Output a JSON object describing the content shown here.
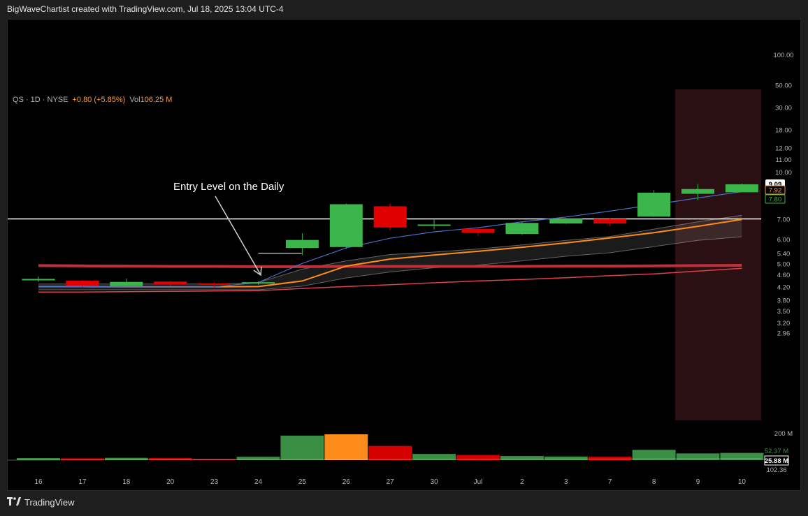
{
  "header": {
    "caption": "BigWaveChartist created with TradingView.com, Jul 18, 2025 13:04 UTC-4"
  },
  "legend": {
    "symbol": "QS · 1D · NYSE",
    "change": "+0.80 (+5.85%)",
    "volume_label": "Vol",
    "volume_value": "106.25 M"
  },
  "annotation": {
    "text": "Entry Level on the Daily"
  },
  "footer": {
    "brand": "TradingView",
    "logo_icon": "tradingview-logo-icon"
  },
  "colors": {
    "up": "#3cb54a",
    "down": "#e00000",
    "ema_orange": "#ff8c1a",
    "ema_blue": "#4a6fc4",
    "ma_red": "#e0404a",
    "ma_red_thick": "#c0303a",
    "horizontal_line": "#ffffff",
    "highlight_zone": "#2a1012",
    "background": "#000000"
  },
  "chart_data": {
    "type": "candlestick",
    "symbol": "QS",
    "timeframe": "1D",
    "exchange": "NYSE",
    "x_labels": [
      "16",
      "17",
      "18",
      "20",
      "23",
      "24",
      "25",
      "26",
      "27",
      "30",
      "Jul",
      "2",
      "3",
      "7",
      "8",
      "9",
      "10"
    ],
    "y_scale": "log",
    "y_tick_labels": [
      "100.00",
      "50.00",
      "30.00",
      "18.00",
      "12.00",
      "11.00",
      "10.00",
      "9.09",
      "7.92",
      "7.80",
      "7.00",
      "6.00",
      "5.40",
      "5.00",
      "4.60",
      "4.20",
      "3.80",
      "3.50",
      "3.20",
      "2.96"
    ],
    "y_ticks": [
      100,
      50,
      30,
      18,
      12,
      11,
      10,
      7,
      6,
      5.4,
      5,
      4.6,
      4.2,
      3.8,
      3.5,
      3.2,
      2.96
    ],
    "candles": [
      {
        "x": "16",
        "open": 4.4,
        "high": 4.53,
        "low": 4.35,
        "close": 4.45
      },
      {
        "x": "17",
        "open": 4.39,
        "high": 4.41,
        "low": 4.18,
        "close": 4.23
      },
      {
        "x": "18",
        "open": 4.22,
        "high": 4.46,
        "low": 4.21,
        "close": 4.35
      },
      {
        "x": "20",
        "open": 4.36,
        "high": 4.38,
        "low": 4.22,
        "close": 4.26
      },
      {
        "x": "23",
        "open": 4.3,
        "high": 4.33,
        "low": 4.16,
        "close": 4.28
      },
      {
        "x": "24",
        "open": 4.31,
        "high": 4.37,
        "low": 4.26,
        "close": 4.34
      },
      {
        "x": "25",
        "open": 5.62,
        "high": 6.28,
        "low": 5.32,
        "close": 5.97
      },
      {
        "x": "26",
        "open": 5.66,
        "high": 7.86,
        "low": 5.58,
        "close": 7.82
      },
      {
        "x": "27",
        "open": 7.7,
        "high": 7.86,
        "low": 6.42,
        "close": 6.56
      },
      {
        "x": "30",
        "open": 6.66,
        "high": 6.96,
        "low": 6.46,
        "close": 6.71
      },
      {
        "x": "Jul",
        "open": 6.49,
        "high": 6.53,
        "low": 6.16,
        "close": 6.3
      },
      {
        "x": "2",
        "open": 6.25,
        "high": 6.84,
        "low": 6.2,
        "close": 6.79
      },
      {
        "x": "3",
        "open": 6.76,
        "high": 7.05,
        "low": 6.74,
        "close": 7.02
      },
      {
        "x": "7",
        "open": 7.0,
        "high": 7.05,
        "low": 6.63,
        "close": 6.76
      },
      {
        "x": "8",
        "open": 7.12,
        "high": 8.7,
        "low": 7.11,
        "close": 8.53
      },
      {
        "x": "9",
        "open": 8.46,
        "high": 9.1,
        "low": 8.07,
        "close": 8.77
      },
      {
        "x": "10",
        "open": 8.56,
        "high": 9.13,
        "low": 8.56,
        "close": 9.09
      }
    ],
    "ema_blue": [
      4.2,
      4.2,
      4.19,
      4.19,
      4.19,
      4.33,
      5.0,
      5.62,
      6.05,
      6.35,
      6.55,
      6.85,
      7.1,
      7.42,
      7.8,
      8.2,
      8.6
    ],
    "ema_orange": [
      4.2,
      4.2,
      4.19,
      4.19,
      4.19,
      4.2,
      4.38,
      4.9,
      5.17,
      5.33,
      5.48,
      5.65,
      5.84,
      6.06,
      6.31,
      6.62,
      6.97
    ],
    "band_upper": [
      4.28,
      4.28,
      4.28,
      4.28,
      4.28,
      4.33,
      4.79,
      5.1,
      5.35,
      5.45,
      5.58,
      5.75,
      5.95,
      6.13,
      6.48,
      6.85,
      7.2
    ],
    "band_lower": [
      4.1,
      4.1,
      4.1,
      4.1,
      4.1,
      4.1,
      4.21,
      4.48,
      4.69,
      4.84,
      4.94,
      5.1,
      5.28,
      5.42,
      5.68,
      5.95,
      6.12
    ],
    "ma_red_thin": [
      4.03,
      4.03,
      4.04,
      4.05,
      4.06,
      4.07,
      4.14,
      4.2,
      4.26,
      4.32,
      4.38,
      4.43,
      4.49,
      4.56,
      4.62,
      4.72,
      4.82
    ],
    "ma_red_thick": [
      4.92,
      4.91,
      4.9,
      4.89,
      4.89,
      4.88,
      4.88,
      4.89,
      4.89,
      4.89,
      4.89,
      4.89,
      4.9,
      4.9,
      4.91,
      4.92,
      4.93
    ],
    "horizontal_line": {
      "price": 7.0,
      "color": "#ffffff"
    },
    "entry_level": {
      "price": 5.4,
      "x": "24"
    },
    "highlight_zone": {
      "from_x": "9",
      "to_x": "10"
    },
    "price_labels": [
      {
        "text": "9.09",
        "style": "white-box"
      },
      {
        "text": "7.92",
        "style": "orange"
      },
      {
        "text": "7.80",
        "style": "green"
      }
    ],
    "volume": {
      "axis_label": "200 M",
      "labels": [
        "52.37 M",
        "25.88 M",
        "102.36"
      ],
      "values": [
        8,
        7,
        9,
        8,
        5,
        13,
        95,
        100,
        55,
        24,
        20,
        16,
        14,
        13,
        40,
        26,
        28
      ],
      "directions": [
        "up",
        "down",
        "up",
        "down",
        "down",
        "up",
        "up",
        "orange",
        "down",
        "up",
        "down",
        "up",
        "up",
        "down",
        "up",
        "up",
        "up"
      ]
    }
  }
}
